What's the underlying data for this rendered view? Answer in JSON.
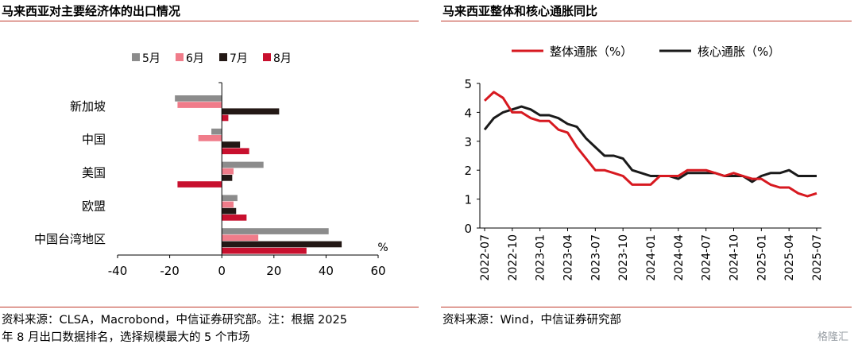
{
  "left_panel": {
    "title": "马来西亚对主要经济体的出口情况",
    "source_line1": "资料来源：CLSA，Macrobond，中信证券研究部。注：根据 2025",
    "source_line2": "年 8 月出口数据排名，选择规模最大的 5 个市场"
  },
  "right_panel": {
    "title": "马来西亚整体和核心通胀同比",
    "source": "资料来源：Wind，中信证券研究部"
  },
  "watermark": "格隆汇",
  "colors": {
    "rule": "#c0392b",
    "may": "#8c8c8c",
    "jun": "#f07c8a",
    "jul": "#231815",
    "aug": "#c8102e",
    "headline": "#d71920",
    "core": "#1a1a1a"
  },
  "chart_data": [
    {
      "type": "bar",
      "orientation": "horizontal",
      "categories": [
        "新加坡",
        "中国",
        "美国",
        "欧盟",
        "中国台湾地区"
      ],
      "series": [
        {
          "name": "5月",
          "values": [
            -18,
            -4,
            16,
            6,
            41
          ]
        },
        {
          "name": "6月",
          "values": [
            -17,
            -9,
            4.5,
            4.5,
            14
          ]
        },
        {
          "name": "7月",
          "values": [
            22,
            7,
            4,
            5.5,
            46
          ]
        },
        {
          "name": "8月",
          "values": [
            2.5,
            10.5,
            -17,
            9.5,
            32.5
          ]
        }
      ],
      "xlim": [
        -40,
        60
      ],
      "xticks": [
        "-40",
        "-20",
        "0",
        "20",
        "40",
        "60"
      ],
      "unit_label": "%",
      "legend": "top"
    },
    {
      "type": "line",
      "x": [
        "2022-07",
        "2022-08",
        "2022-09",
        "2022-10",
        "2022-11",
        "2022-12",
        "2023-01",
        "2023-02",
        "2023-03",
        "2023-04",
        "2023-05",
        "2023-06",
        "2023-07",
        "2023-08",
        "2023-09",
        "2023-10",
        "2023-11",
        "2023-12",
        "2024-01",
        "2024-02",
        "2024-03",
        "2024-04",
        "2024-05",
        "2024-06",
        "2024-07",
        "2024-08",
        "2024-09",
        "2024-10",
        "2024-11",
        "2024-12",
        "2025-01",
        "2025-02",
        "2025-03",
        "2025-04",
        "2025-05",
        "2025-06",
        "2025-07"
      ],
      "xticks": [
        "2022-07",
        "2022-10",
        "2023-01",
        "2023-04",
        "2023-07",
        "2023-10",
        "2024-01",
        "2024-04",
        "2024-07",
        "2024-10",
        "2025-01",
        "2025-04",
        "2025-07"
      ],
      "series": [
        {
          "name": "整体通胀（%）",
          "values": [
            4.4,
            4.7,
            4.5,
            4.0,
            4.0,
            3.8,
            3.7,
            3.7,
            3.4,
            3.3,
            2.8,
            2.4,
            2.0,
            2.0,
            1.9,
            1.8,
            1.5,
            1.5,
            1.5,
            1.8,
            1.8,
            1.8,
            2.0,
            2.0,
            2.0,
            1.9,
            1.8,
            1.9,
            1.8,
            1.7,
            1.7,
            1.5,
            1.4,
            1.4,
            1.2,
            1.1,
            1.2
          ]
        },
        {
          "name": "核心通胀（%）",
          "values": [
            3.4,
            3.8,
            4.0,
            4.1,
            4.2,
            4.1,
            3.9,
            3.9,
            3.8,
            3.6,
            3.5,
            3.1,
            2.8,
            2.5,
            2.5,
            2.4,
            2.0,
            1.9,
            1.8,
            1.8,
            1.8,
            1.7,
            1.9,
            1.9,
            1.9,
            1.9,
            1.8,
            1.8,
            1.8,
            1.6,
            1.8,
            1.9,
            1.9,
            2.0,
            1.8,
            1.8,
            1.8
          ]
        }
      ],
      "ylim": [
        0,
        5
      ],
      "yticks": [
        "0",
        "1",
        "2",
        "3",
        "4",
        "5"
      ],
      "legend": "top"
    }
  ]
}
